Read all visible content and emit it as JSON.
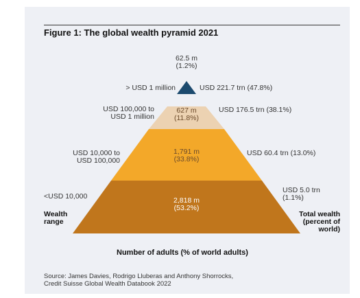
{
  "title": "Figure 1: The global wealth pyramid 2021",
  "tiers": [
    {
      "range_line1": "> USD 1 million",
      "range_line2": "",
      "adults_line1": "62.5 m",
      "adults_line2": "(1.2%)",
      "wealth": "USD 221.7 trn (47.8%)",
      "color": "#1c4a6e"
    },
    {
      "range_line1": "USD 100,000 to",
      "range_line2": "USD 1 million",
      "adults_line1": "627 m",
      "adults_line2": "(11.8%)",
      "wealth": "USD 176.5 trn (38.1%)",
      "color": "#ecd2b2"
    },
    {
      "range_line1": "USD 10,000 to",
      "range_line2": "USD 100,000",
      "adults_line1": "1,791 m",
      "adults_line2": "(33.8%)",
      "wealth": "USD 60.4 trn (13.0%)",
      "color": "#f3a829"
    },
    {
      "range_line1": "<USD 10,000",
      "range_line2": "",
      "adults_line1": "2,818 m",
      "adults_line2": "(53.2%)",
      "wealth_line1": "USD 5.0 trn",
      "wealth_line2": "(1.1%)",
      "color": "#c0761c"
    }
  ],
  "left_axis_line1": "Wealth",
  "left_axis_line2": "range",
  "right_axis_line1": "Total wealth",
  "right_axis_line2": "(percent of",
  "right_axis_line3": "world)",
  "x_label": "Number of adults (% of world adults)",
  "source_line1": "Source: James Davies, Rodrigo Lluberas and Anthony Shorrocks,",
  "source_line2": "Credit Suisse Global Wealth Databook 2022"
}
